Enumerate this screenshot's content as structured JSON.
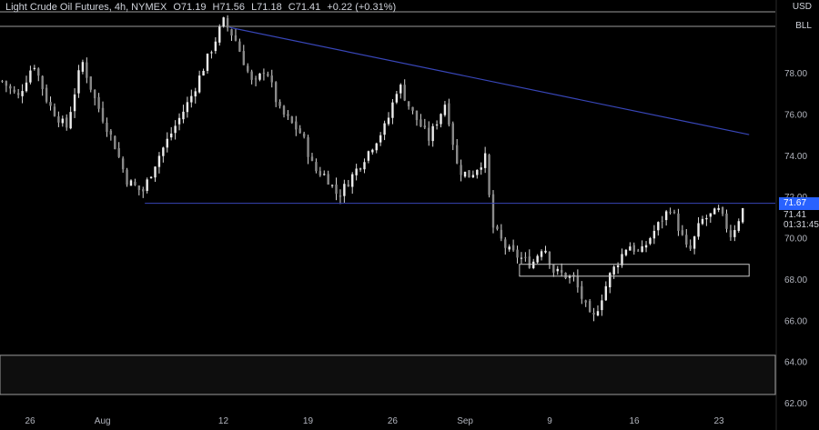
{
  "legend": {
    "symbol": "Light Crude Oil Futures, 4h, NYMEX",
    "open": "O71.19",
    "high": "H71.56",
    "low": "L71.18",
    "close": "C71.41",
    "change": "+0.22 (+0.31%)"
  },
  "badges": {
    "currency": "USD",
    "unit": "BLL"
  },
  "price_tags": {
    "resistance": "71.67",
    "last": "71.41",
    "countdown": "01:31:45"
  },
  "colors": {
    "background": "#000000",
    "candle": "#d9d9d9",
    "trendline": "#3846b8",
    "resistance_tag": "#2962ff",
    "axis_text": "#b2b5be",
    "range_box": "#c8c8c8"
  },
  "chart_data": {
    "type": "candlestick",
    "title": "Light Crude Oil Futures, 4h, NYMEX",
    "ylim": [
      62,
      82
    ],
    "y_ticks": [
      62,
      64,
      66,
      68,
      70,
      72,
      74,
      76,
      78
    ],
    "y_tick_labels": [
      "62.00",
      "64.00",
      "66.00",
      "68.00",
      "70.00",
      "72.00",
      "74.00",
      "76.00",
      "78.00"
    ],
    "x_ticks": [
      "26",
      "Aug",
      "12",
      "19",
      "26",
      "Sep",
      "9",
      "16",
      "23"
    ],
    "x_tick_positions": [
      0,
      6,
      16,
      23,
      30,
      36,
      43,
      50,
      57
    ],
    "x_range": [
      -2.5,
      59.5
    ],
    "grid": false,
    "trendline": {
      "from": {
        "day": 16.5,
        "price": 80.2
      },
      "to": {
        "day": 59.5,
        "price": 75.0
      }
    },
    "support_line": {
      "from_day": 9.5,
      "to_day": 58.5,
      "price": 71.67
    },
    "range_box": {
      "from_day": 40.5,
      "to_day": 59.5,
      "low": 68.4,
      "high": 68.8
    },
    "last_price": 71.41,
    "anchor_closes": [
      [
        -2.3,
        77.6
      ],
      [
        -1.0,
        76.8
      ],
      [
        0.3,
        78.5
      ],
      [
        1.5,
        76.5
      ],
      [
        3.0,
        75.3
      ],
      [
        4.3,
        78.6
      ],
      [
        5.3,
        76.8
      ],
      [
        7.0,
        74.5
      ],
      [
        8.0,
        72.8
      ],
      [
        9.3,
        72.2
      ],
      [
        10.5,
        73.8
      ],
      [
        13.3,
        76.8
      ],
      [
        16.0,
        80.5
      ],
      [
        17.0,
        79.6
      ],
      [
        18.5,
        77.3
      ],
      [
        19.5,
        78.3
      ],
      [
        20.6,
        76.2
      ],
      [
        22.5,
        75.0
      ],
      [
        23.5,
        73.3
      ],
      [
        24.5,
        73.0
      ],
      [
        25.5,
        72.0
      ],
      [
        27.0,
        73.3
      ],
      [
        29.5,
        75.5
      ],
      [
        30.5,
        77.5
      ],
      [
        31.5,
        76.2
      ],
      [
        33.0,
        74.8
      ],
      [
        34.4,
        76.6
      ],
      [
        35.4,
        73.3
      ],
      [
        36.4,
        73.0
      ],
      [
        37.7,
        73.9
      ],
      [
        38.2,
        70.6
      ],
      [
        39.5,
        69.4
      ],
      [
        41.5,
        68.7
      ],
      [
        42.5,
        69.7
      ],
      [
        43.3,
        68.4
      ],
      [
        45.0,
        68.0
      ],
      [
        46.5,
        65.9
      ],
      [
        48.0,
        68.2
      ],
      [
        49.5,
        69.7
      ],
      [
        50.5,
        69.2
      ],
      [
        51.5,
        70.2
      ],
      [
        53.0,
        71.5
      ],
      [
        54.5,
        69.2
      ],
      [
        55.5,
        70.8
      ],
      [
        57.0,
        71.3
      ],
      [
        58.0,
        70.1
      ],
      [
        59.0,
        71.41
      ]
    ]
  }
}
